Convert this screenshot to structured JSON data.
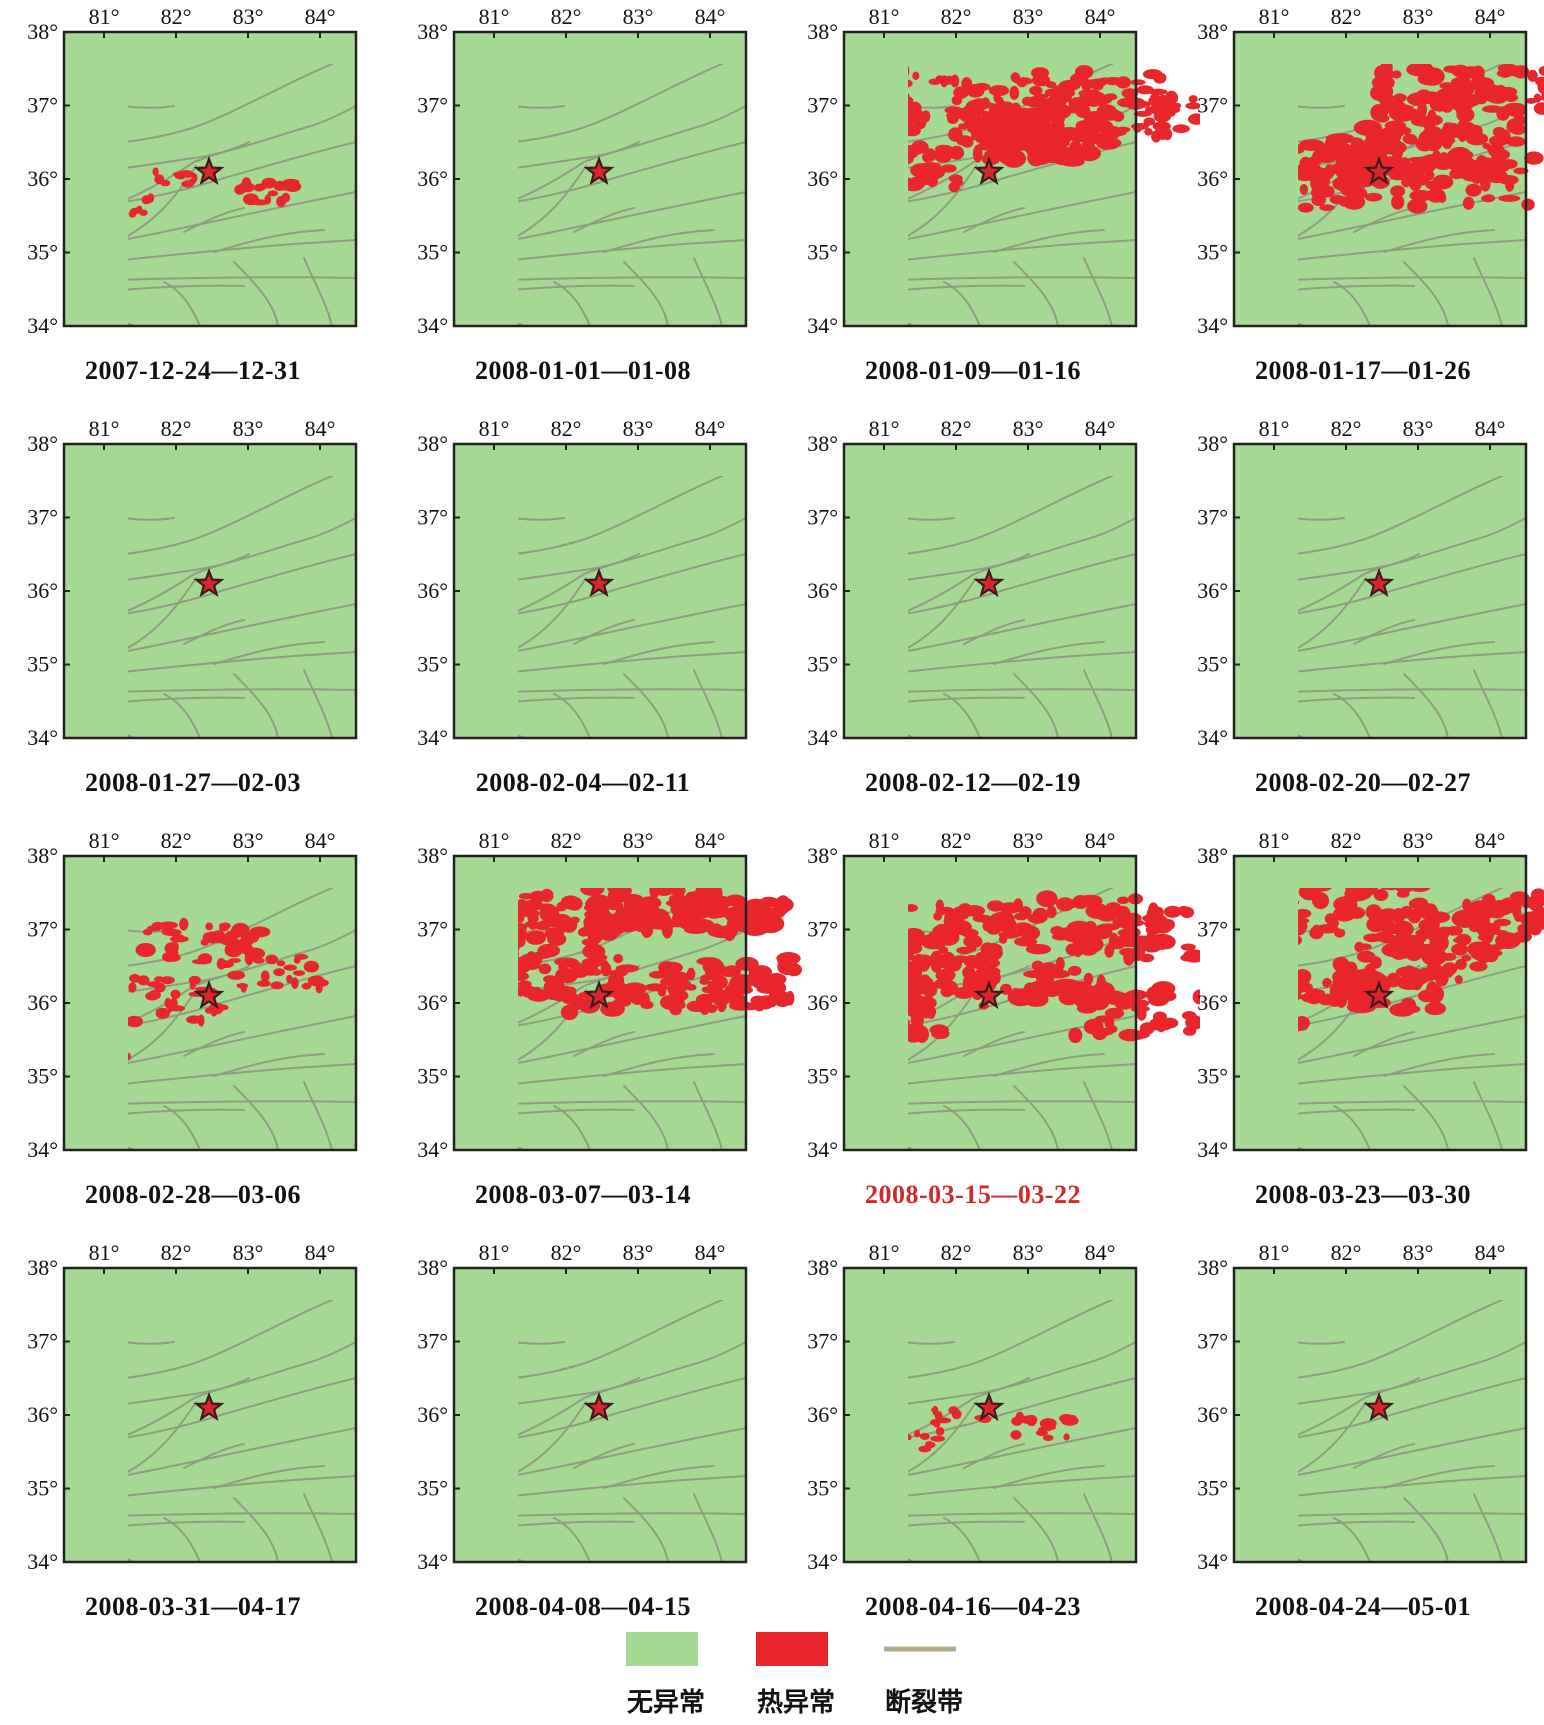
{
  "panels": [
    {
      "caption": "2007-12-24—12-31",
      "highlight": false,
      "anomaly_level": "low"
    },
    {
      "caption": "2008-01-01—01-08",
      "highlight": false,
      "anomaly_level": "none"
    },
    {
      "caption": "2008-01-09—01-16",
      "highlight": false,
      "anomaly_level": "high"
    },
    {
      "caption": "2008-01-17—01-26",
      "highlight": false,
      "anomaly_level": "high"
    },
    {
      "caption": "2008-01-27—02-03",
      "highlight": false,
      "anomaly_level": "none"
    },
    {
      "caption": "2008-02-04—02-11",
      "highlight": false,
      "anomaly_level": "none"
    },
    {
      "caption": "2008-02-12—02-19",
      "highlight": false,
      "anomaly_level": "none"
    },
    {
      "caption": "2008-02-20—02-27",
      "highlight": false,
      "anomaly_level": "none"
    },
    {
      "caption": "2008-02-28—03-06",
      "highlight": false,
      "anomaly_level": "medium"
    },
    {
      "caption": "2008-03-07—03-14",
      "highlight": false,
      "anomaly_level": "high"
    },
    {
      "caption": "2008-03-15—03-22",
      "highlight": true,
      "anomaly_level": "high"
    },
    {
      "caption": "2008-03-23—03-30",
      "highlight": false,
      "anomaly_level": "high"
    },
    {
      "caption": "2008-03-31—04-17",
      "highlight": false,
      "anomaly_level": "none"
    },
    {
      "caption": "2008-04-08—04-15",
      "highlight": false,
      "anomaly_level": "none"
    },
    {
      "caption": "2008-04-16—04-23",
      "highlight": false,
      "anomaly_level": "low"
    },
    {
      "caption": "2008-04-24—05-01",
      "highlight": false,
      "anomaly_level": "none"
    }
  ],
  "axes": {
    "lon_labels": [
      "81°",
      "82°",
      "83°",
      "84°"
    ],
    "lat_labels": [
      "38°",
      "37°",
      "36°",
      "35°",
      "34°"
    ]
  },
  "legend": {
    "no_anomaly": "无异常",
    "thermal_anomaly": "热异常",
    "fault_zone": "断裂带"
  },
  "colors": {
    "no_anomaly": "#a6da94",
    "thermal_anomaly": "#e8262c",
    "fault_zone": "#8e9e80",
    "epicenter": "#d9262c",
    "highlight_caption": "#d22a2a"
  },
  "icons": {
    "epicenter": "star-icon"
  }
}
